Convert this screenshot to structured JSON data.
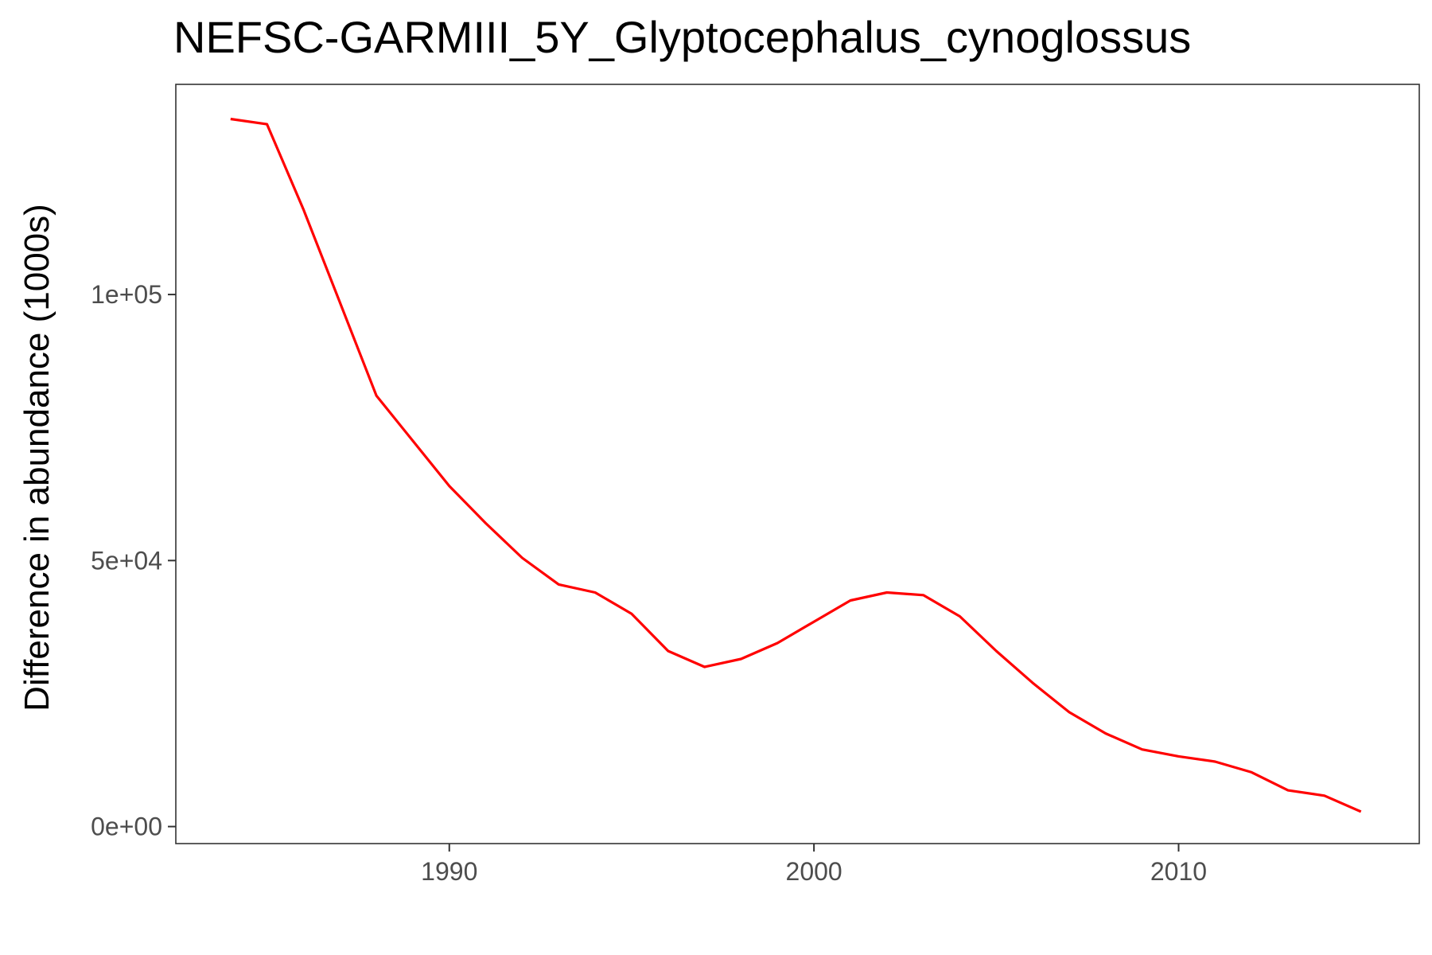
{
  "chart_data": {
    "type": "line",
    "title": "NEFSC-GARMIII_5Y_Glyptocephalus_cynoglossus",
    "xlabel": "",
    "ylabel": "Difference in abundance (1000s)",
    "x_ticks": [
      {
        "value": 1990,
        "label": "1990"
      },
      {
        "value": 2000,
        "label": "2000"
      },
      {
        "value": 2010,
        "label": "2010"
      }
    ],
    "y_ticks": [
      {
        "value": 0,
        "label": "0e+00"
      },
      {
        "value": 50000,
        "label": "5e+04"
      },
      {
        "value": 100000,
        "label": "1e+05"
      }
    ],
    "xlim": [
      1982.5,
      2016.6
    ],
    "ylim": [
      -3200,
      139500
    ],
    "grid": false,
    "series": [
      {
        "color": "#ff0000",
        "x": [
          1984,
          1985,
          1986,
          1987,
          1988,
          1989,
          1990,
          1991,
          1992,
          1993,
          1994,
          1995,
          1996,
          1997,
          1998,
          1999,
          2000,
          2001,
          2002,
          2003,
          2004,
          2005,
          2006,
          2007,
          2008,
          2009,
          2010,
          2011,
          2012,
          2013,
          2014,
          2015
        ],
        "y": [
          133000,
          132000,
          116000,
          98500,
          81000,
          72500,
          64000,
          57000,
          50500,
          45500,
          44000,
          40000,
          33000,
          30000,
          31500,
          34500,
          38500,
          42500,
          44000,
          43500,
          39500,
          33000,
          27000,
          21500,
          17500,
          14500,
          13200,
          12200,
          10200,
          6800,
          5800,
          2800
        ]
      }
    ]
  }
}
